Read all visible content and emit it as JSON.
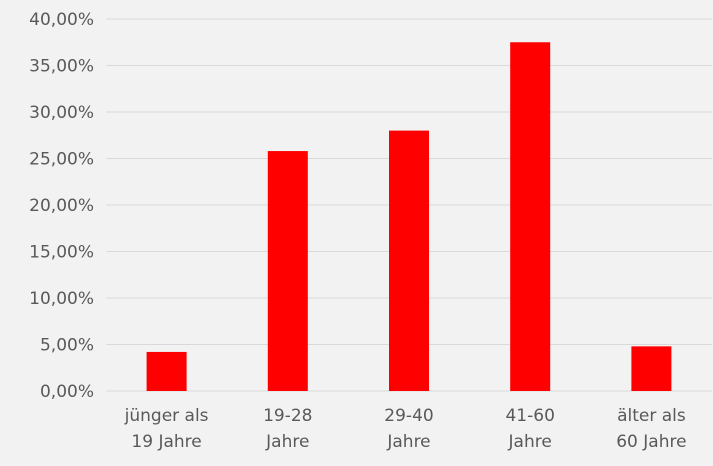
{
  "chart_data": {
    "type": "bar",
    "categories": [
      [
        "jünger als",
        "19 Jahre"
      ],
      [
        "19-28",
        "Jahre"
      ],
      [
        "29-40",
        "Jahre"
      ],
      [
        "41-60",
        "Jahre"
      ],
      [
        "älter als",
        "60 Jahre"
      ]
    ],
    "values": [
      4.2,
      25.8,
      28.0,
      37.5,
      4.8
    ],
    "ylim": [
      0,
      40
    ],
    "yticks": [
      0,
      5,
      10,
      15,
      20,
      25,
      30,
      35,
      40
    ],
    "ytick_labels": [
      "0,00%",
      "5,00%",
      "10,00%",
      "15,00%",
      "20,00%",
      "25,00%",
      "30,00%",
      "35,00%",
      "40,00%"
    ],
    "title": "",
    "xlabel": "",
    "ylabel": "",
    "grid": true,
    "legend": "none",
    "bar_color": "#ff0000",
    "background_color": "#f2f2f2",
    "grid_color": "#d9d9d9",
    "text_color": "#595959"
  }
}
